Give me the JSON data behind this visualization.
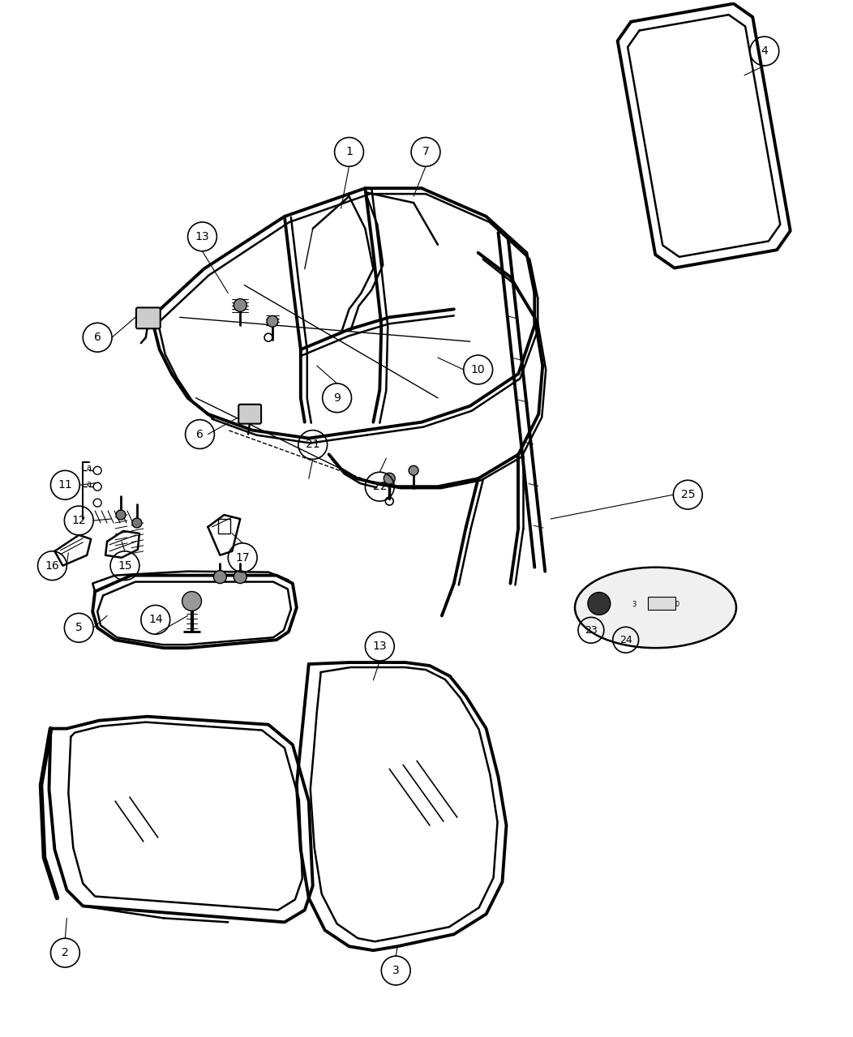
{
  "bg_color": "#ffffff",
  "line_color": "#000000",
  "fig_width": 10.52,
  "fig_height": 12.79,
  "dpi": 100
}
